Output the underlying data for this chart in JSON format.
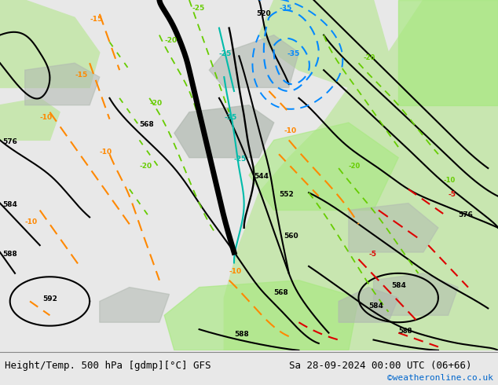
{
  "title_left": "Height/Temp. 500 hPa [gdmp][°C] GFS",
  "title_right": "Sa 28-09-2024 00:00 UTC (06+66)",
  "watermark": "©weatheronline.co.uk",
  "title_fontsize": 9,
  "watermark_color": "#0066cc",
  "title_color": "#000000",
  "figsize": [
    6.34,
    4.9
  ],
  "dpi": 100,
  "bg_land": "#c8e6b0",
  "bg_sea": "#d4dde8",
  "bg_grey": "#b0b8b0",
  "bg_green_bright": "#a8e880",
  "colors": {
    "black": "#000000",
    "green": "#66cc00",
    "orange": "#ff8800",
    "blue": "#0088ff",
    "cyan": "#00bbaa",
    "red": "#dd0000"
  }
}
